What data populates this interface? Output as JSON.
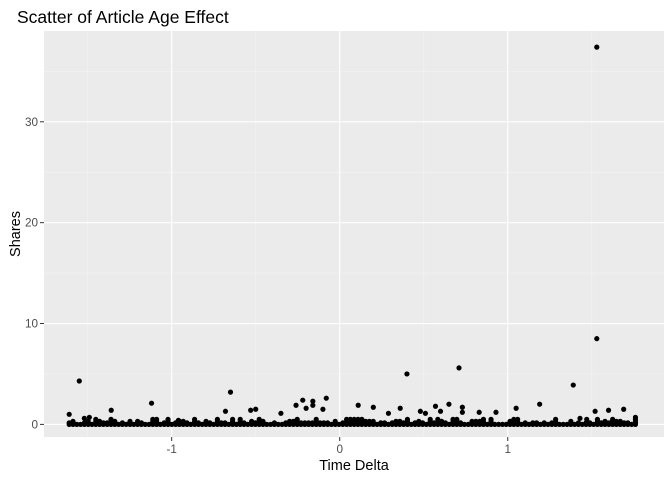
{
  "chart_data": {
    "type": "scatter",
    "title": "Scatter of Article Age Effect",
    "xlabel": "Time Delta",
    "ylabel": "Shares",
    "xlim": [
      -1.76,
      1.93
    ],
    "ylim": [
      -1.25,
      39.0
    ],
    "x_ticks": [
      -1,
      0,
      1
    ],
    "x_tick_labels": [
      "-1",
      "0",
      "1"
    ],
    "y_ticks": [
      0,
      10,
      20,
      30
    ],
    "y_tick_labels": [
      "0",
      "10",
      "20",
      "30"
    ],
    "grid": true,
    "legend": "none",
    "colors": {
      "panel": "#ebebeb",
      "grid_major": "#ffffff",
      "grid_minor": "#f4f4f4",
      "point": "#000000",
      "tick": "#4d4d4d"
    },
    "points": [
      [
        -1.55,
        4.3
      ],
      [
        -1.61,
        1.0
      ],
      [
        -1.52,
        0.6
      ],
      [
        -1.49,
        0.7
      ],
      [
        -1.36,
        1.4
      ],
      [
        -1.12,
        2.1
      ],
      [
        -0.96,
        0.4
      ],
      [
        -0.65,
        3.2
      ],
      [
        -0.68,
        1.3
      ],
      [
        -0.53,
        1.4
      ],
      [
        -0.5,
        1.5
      ],
      [
        -0.35,
        1.1
      ],
      [
        -0.26,
        1.9
      ],
      [
        -0.22,
        2.4
      ],
      [
        -0.16,
        2.3
      ],
      [
        -0.16,
        1.9
      ],
      [
        -0.08,
        2.6
      ],
      [
        -0.1,
        1.5
      ],
      [
        0.11,
        1.9
      ],
      [
        0.2,
        1.7
      ],
      [
        0.29,
        1.1
      ],
      [
        0.36,
        1.6
      ],
      [
        0.4,
        5.0
      ],
      [
        0.48,
        1.3
      ],
      [
        0.51,
        1.1
      ],
      [
        0.57,
        1.8
      ],
      [
        0.65,
        2.0
      ],
      [
        0.6,
        1.3
      ],
      [
        0.71,
        5.6
      ],
      [
        0.73,
        1.7
      ],
      [
        0.73,
        1.2
      ],
      [
        0.83,
        1.2
      ],
      [
        0.93,
        1.2
      ],
      [
        1.05,
        1.6
      ],
      [
        1.19,
        2.0
      ],
      [
        1.39,
        3.9
      ],
      [
        1.53,
        37.4
      ],
      [
        1.53,
        8.5
      ],
      [
        1.52,
        1.3
      ],
      [
        1.6,
        1.4
      ],
      [
        1.69,
        1.5
      ],
      [
        1.76,
        0.7
      ],
      [
        -0.2,
        1.6
      ],
      [
        1.43,
        0.6
      ],
      [
        1.47,
        0.5
      ]
    ],
    "dense_band": {
      "x_range": [
        -1.61,
        1.76
      ],
      "y_values": [
        0.0,
        0.15,
        0.3,
        0.5
      ]
    }
  }
}
